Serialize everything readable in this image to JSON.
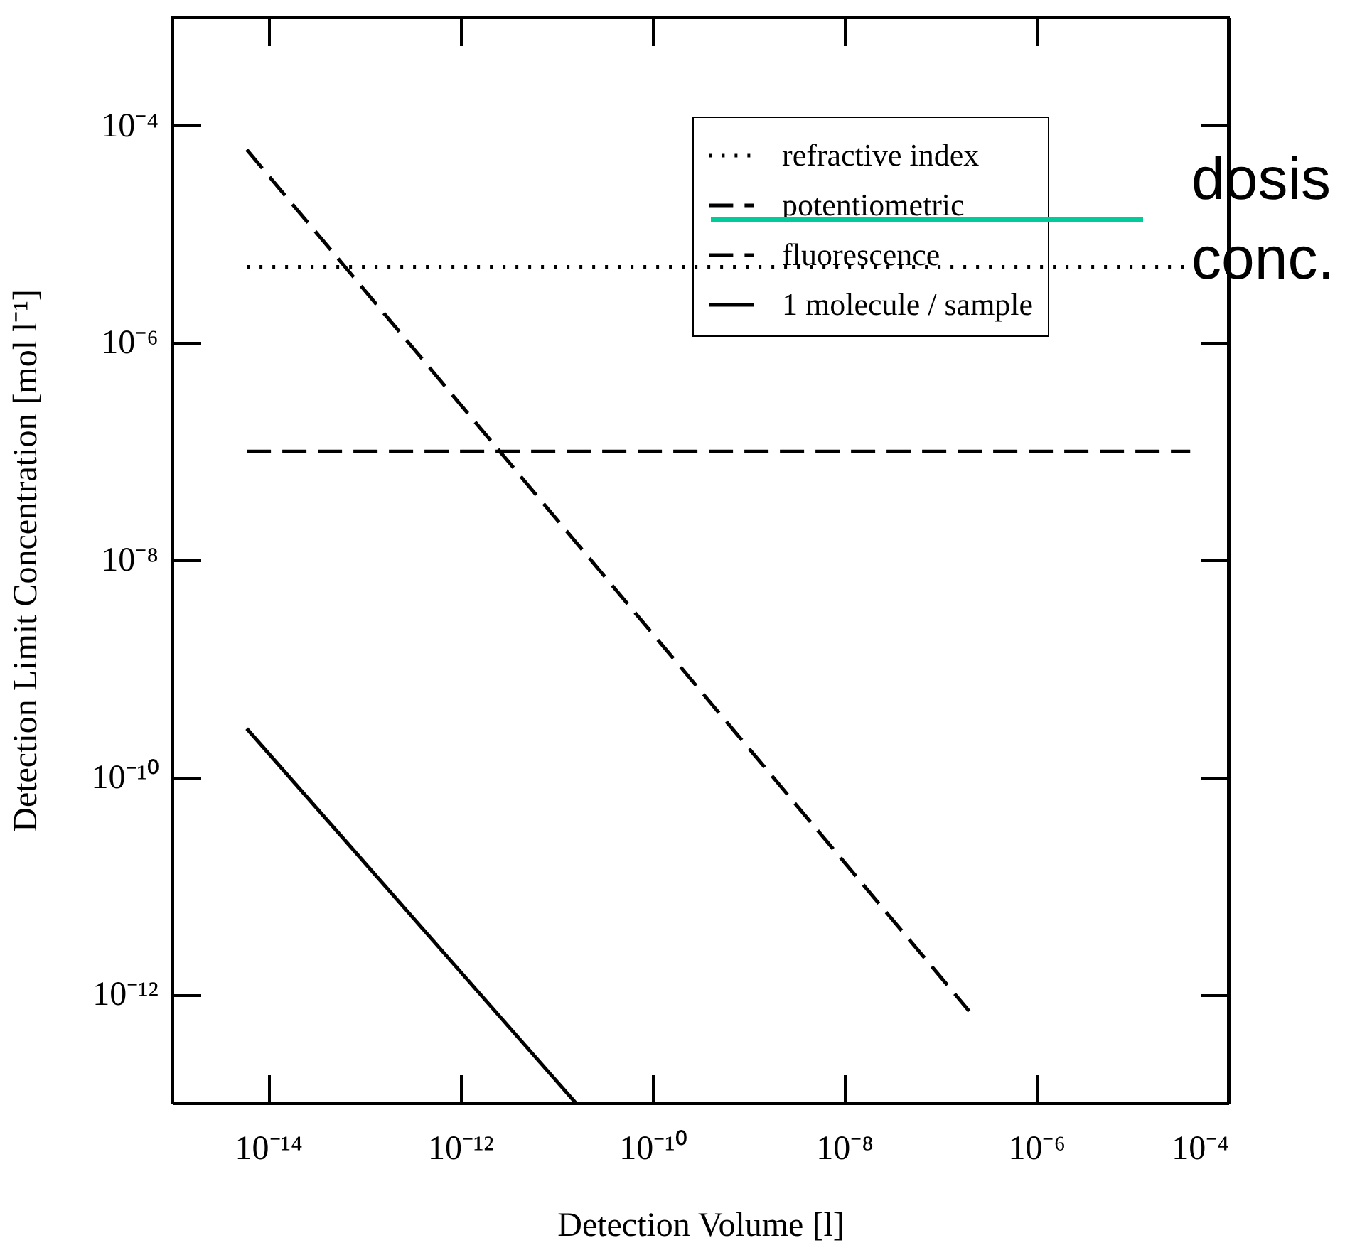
{
  "chart_data": {
    "type": "line",
    "xlabel": "Detection Volume [l]",
    "ylabel": "Detection Limit Concentration [mol l⁻¹]",
    "log": "xy",
    "grid": false,
    "legend": "top right",
    "marker": "none",
    "xlim": [
      1e-15,
      0.0001
    ],
    "ylim": [
      1e-13,
      0.001
    ],
    "xticks": [
      {
        "value": 1e-14,
        "label": "10⁻¹⁴"
      },
      {
        "value": 1e-12,
        "label": "10⁻¹²"
      },
      {
        "value": 1e-10,
        "label": "10⁻¹⁰"
      },
      {
        "value": 1e-08,
        "label": "10⁻⁸"
      },
      {
        "value": 1e-06,
        "label": "10⁻⁶"
      },
      {
        "value": 0.0001,
        "label": "10⁻⁴"
      }
    ],
    "yticks": [
      {
        "value": 1e-12,
        "label": "10⁻¹²"
      },
      {
        "value": 1e-10,
        "label": "10⁻¹⁰"
      },
      {
        "value": 1e-08,
        "label": "10⁻⁸"
      },
      {
        "value": 1e-06,
        "label": "10⁻⁶"
      },
      {
        "value": 0.0001,
        "label": "10⁻⁴"
      }
    ],
    "series": [
      {
        "name": "refractive index",
        "color": "#000000",
        "line_style": "dotted",
        "x": [
          6e-15,
          4e-05
        ],
        "values": [
          5e-06,
          5e-06
        ]
      },
      {
        "name": "potentiometric",
        "color": "#000000",
        "line_style": "dashed",
        "x": [
          6e-15,
          4e-05
        ],
        "values": [
          1e-07,
          1e-07
        ]
      },
      {
        "name": "fluorescence",
        "color": "#000000",
        "line_style": "dashed",
        "x": [
          6e-15,
          2e-07
        ],
        "values": [
          6e-05,
          7e-13
        ]
      },
      {
        "name": "1 molecule / sample",
        "color": "#000000",
        "line_style": "solid",
        "x": [
          6e-15,
          1.6e-11
        ],
        "values": [
          2.8e-10,
          1e-13
        ]
      }
    ],
    "annotations": [
      "dosis",
      "conc."
    ]
  }
}
